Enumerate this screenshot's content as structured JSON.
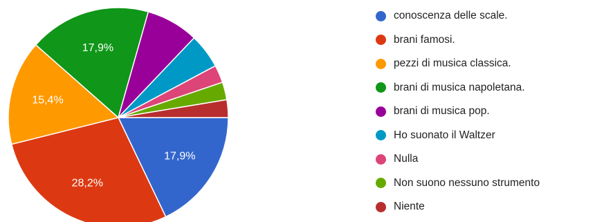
{
  "chart_data": {
    "type": "pie",
    "start_angle_deg": 0,
    "direction": "clockwise",
    "legend_position": "right",
    "slices": [
      {
        "label": "conoscenza delle scale.",
        "value": 17.9,
        "value_label": "17,9%",
        "color": "#3366cc"
      },
      {
        "label": "brani famosi.",
        "value": 28.2,
        "value_label": "28,2%",
        "color": "#dc3912"
      },
      {
        "label": "pezzi di musica classica.",
        "value": 15.4,
        "value_label": "15,4%",
        "color": "#ff9900"
      },
      {
        "label": "brani di musica napoletana.",
        "value": 17.9,
        "value_label": "17,9%",
        "color": "#109618"
      },
      {
        "label": "brani di musica pop.",
        "value": 7.7,
        "value_label": "",
        "color": "#990099"
      },
      {
        "label": "Ho suonato il Waltzer",
        "value": 5.1,
        "value_label": "",
        "color": "#0099c6"
      },
      {
        "label": "Nulla",
        "value": 2.6,
        "value_label": "",
        "color": "#dd4477"
      },
      {
        "label": "Non suono nessuno strumento",
        "value": 2.6,
        "value_label": "",
        "color": "#66aa00"
      },
      {
        "label": "Niente",
        "value": 2.6,
        "value_label": "",
        "color": "#b82e2e"
      }
    ]
  }
}
